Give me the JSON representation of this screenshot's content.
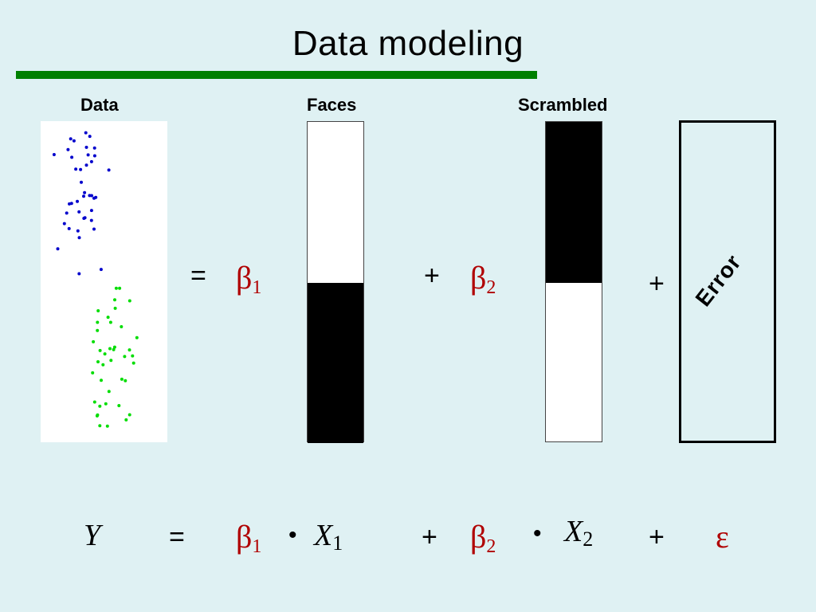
{
  "title": "Data modeling",
  "labels": {
    "data": "Data",
    "faces": "Faces",
    "scrambled": "Scrambled",
    "error": "Error"
  },
  "top_equation": {
    "equals": "=",
    "plus1": "+",
    "plus2": "+",
    "beta": "β",
    "beta1_sub": "1",
    "beta2_sub": "2"
  },
  "bottom_equation": {
    "y": "Y",
    "equals": "=",
    "beta": "β",
    "beta1_sub": "1",
    "beta2_sub": "2",
    "dot": "•",
    "x": "X",
    "x1_sub": "1",
    "x2_sub": "2",
    "plus": "+",
    "epsilon": "ε"
  },
  "regressors": {
    "faces": {
      "top_value": 0,
      "bottom_value": 1
    },
    "scrambled": {
      "top_value": 1,
      "bottom_value": 0
    }
  },
  "colors": {
    "background": "#dff1f3",
    "title_rule": "#008000",
    "beta": "#b00000",
    "faces_condition_points": "#0000cc",
    "scrambled_condition_points": "#00dd00"
  }
}
